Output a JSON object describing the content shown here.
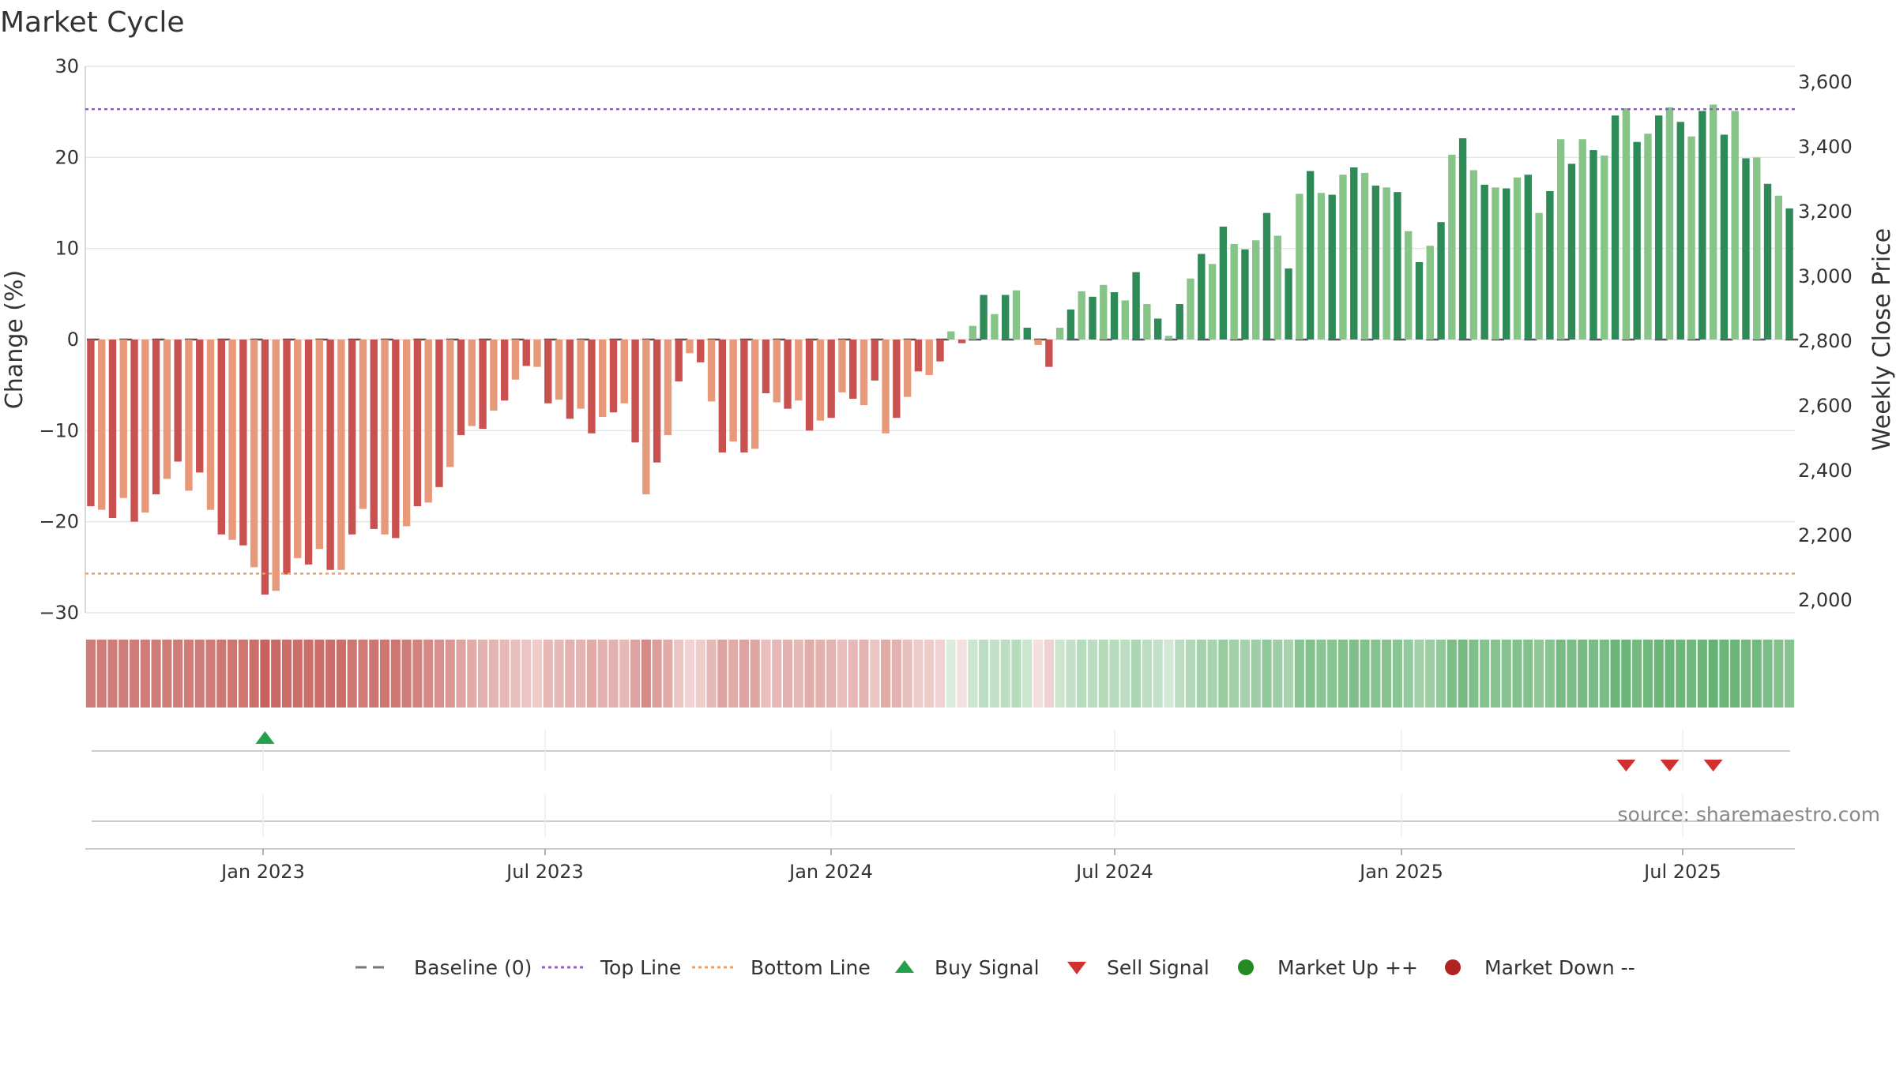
{
  "chart_data": {
    "type": "bar",
    "title": "Market Cycle",
    "y_left": {
      "label": "Change (%)",
      "range": [
        -30,
        30
      ],
      "ticks": [
        -30,
        -20,
        -10,
        0,
        10,
        20,
        30
      ],
      "tick_labels": [
        "−30",
        "−20",
        "−10",
        "0",
        "10",
        "20",
        "30"
      ]
    },
    "y_right": {
      "label": "Weekly Close Price",
      "ticks": [
        "2,000",
        "2,200",
        "2,400",
        "2,600",
        "2,800",
        "3,000",
        "3,200",
        "3,400",
        "3,600"
      ]
    },
    "x_ticks": [
      "Jan 2023",
      "Jul 2023",
      "Jan 2024",
      "Jul 2024",
      "Jan 2025",
      "Jul 2025"
    ],
    "top_line": 25.3,
    "bottom_line": -25.7,
    "source": "source: sharemaestro.com",
    "colors": {
      "down_dark": "#c9514f",
      "down_light": "#e8997a",
      "up_dark": "#2e8b57",
      "up_light": "#86c587",
      "top_line": "#9b59d0",
      "bottom_line": "#f0a060",
      "buy": "#22a04b",
      "sell": "#d03030",
      "market_up": "#228b22",
      "market_down": "#b22222",
      "baseline": "#555555"
    },
    "legend": [
      {
        "label": "Baseline (0)",
        "kind": "dash"
      },
      {
        "label": "Top Line",
        "kind": "dot-purple"
      },
      {
        "label": "Bottom Line",
        "kind": "dot-orange"
      },
      {
        "label": "Buy Signal",
        "kind": "tri-up"
      },
      {
        "label": "Sell Signal",
        "kind": "tri-down"
      },
      {
        "label": "Market Up ++",
        "kind": "circle-green"
      },
      {
        "label": "Market Down --",
        "kind": "circle-red"
      }
    ],
    "values": [
      -18.3,
      -18.7,
      -19.6,
      -17.4,
      -20.0,
      -19.0,
      -17.0,
      -15.3,
      -13.4,
      -16.6,
      -14.6,
      -18.7,
      -21.4,
      -22.0,
      -22.6,
      -25.0,
      -28.0,
      -27.6,
      -25.8,
      -24.0,
      -24.7,
      -23.0,
      -25.3,
      -25.3,
      -21.4,
      -18.6,
      -20.8,
      -21.4,
      -21.8,
      -20.5,
      -18.3,
      -17.9,
      -16.2,
      -14.0,
      -10.5,
      -9.5,
      -9.8,
      -7.8,
      -6.7,
      -4.4,
      -2.9,
      -3.0,
      -7.0,
      -6.6,
      -8.7,
      -7.6,
      -10.3,
      -8.5,
      -8.0,
      -7.0,
      -11.3,
      -17.0,
      -13.5,
      -10.5,
      -4.6,
      -1.5,
      -2.5,
      -6.8,
      -12.4,
      -11.2,
      -12.4,
      -12.0,
      -5.9,
      -6.9,
      -7.6,
      -6.7,
      -10.0,
      -8.9,
      -8.6,
      -5.8,
      -6.5,
      -7.2,
      -4.5,
      -10.3,
      -8.6,
      -6.3,
      -3.5,
      -3.9,
      -2.4,
      0.9,
      -0.4,
      1.5,
      4.9,
      2.8,
      4.9,
      5.4,
      1.3,
      -0.6,
      -3.0,
      1.3,
      3.3,
      5.3,
      4.7,
      6.0,
      5.2,
      4.3,
      7.4,
      3.9,
      2.3,
      0.4,
      3.9,
      6.7,
      9.4,
      8.3,
      12.4,
      10.5,
      9.9,
      10.9,
      13.9,
      11.4,
      7.8,
      16.0,
      18.5,
      16.1,
      15.9,
      18.1,
      18.9,
      18.3,
      16.9,
      16.7,
      16.2,
      11.9,
      8.5,
      10.3,
      12.9,
      20.3,
      22.1,
      18.6,
      17.0,
      16.7,
      16.6,
      17.8,
      18.1,
      13.9,
      16.3,
      22.0,
      19.3,
      22.0,
      20.8,
      20.2,
      24.6,
      25.4,
      21.7,
      22.6,
      24.6,
      25.5,
      23.9,
      22.3,
      25.1,
      25.8,
      22.5,
      25.1,
      19.9,
      20.0,
      17.1,
      15.8,
      14.4
    ],
    "strip_values": [
      -0.8,
      -0.8,
      -0.8,
      -0.8,
      -0.8,
      -0.8,
      -0.8,
      -0.8,
      -0.8,
      -0.8,
      -0.8,
      -0.8,
      -0.85,
      -0.85,
      -0.85,
      -0.9,
      -1.0,
      -0.95,
      -0.9,
      -0.9,
      -0.9,
      -0.9,
      -0.9,
      -0.9,
      -0.85,
      -0.8,
      -0.85,
      -0.85,
      -0.85,
      -0.8,
      -0.75,
      -0.7,
      -0.65,
      -0.6,
      -0.5,
      -0.45,
      -0.4,
      -0.38,
      -0.35,
      -0.3,
      -0.25,
      -0.2,
      -0.35,
      -0.35,
      -0.4,
      -0.38,
      -0.45,
      -0.4,
      -0.4,
      -0.35,
      -0.5,
      -0.7,
      -0.55,
      -0.45,
      -0.25,
      -0.15,
      -0.2,
      -0.35,
      -0.5,
      -0.45,
      -0.5,
      -0.48,
      -0.3,
      -0.35,
      -0.4,
      -0.35,
      -0.45,
      -0.4,
      -0.38,
      -0.3,
      -0.35,
      -0.38,
      -0.25,
      -0.45,
      -0.4,
      -0.3,
      -0.2,
      -0.2,
      -0.15,
      0.05,
      -0.05,
      0.15,
      0.25,
      0.2,
      0.25,
      0.28,
      0.15,
      -0.05,
      -0.15,
      0.15,
      0.2,
      0.28,
      0.25,
      0.3,
      0.28,
      0.25,
      0.35,
      0.25,
      0.2,
      0.1,
      0.25,
      0.32,
      0.4,
      0.38,
      0.48,
      0.42,
      0.4,
      0.45,
      0.52,
      0.45,
      0.38,
      0.58,
      0.62,
      0.58,
      0.58,
      0.62,
      0.64,
      0.62,
      0.6,
      0.6,
      0.58,
      0.5,
      0.42,
      0.46,
      0.52,
      0.66,
      0.7,
      0.64,
      0.6,
      0.6,
      0.6,
      0.62,
      0.62,
      0.54,
      0.58,
      0.7,
      0.66,
      0.7,
      0.68,
      0.68,
      0.76,
      0.78,
      0.72,
      0.74,
      0.76,
      0.78,
      0.76,
      0.74,
      0.78,
      0.8,
      0.76,
      0.78,
      0.72,
      0.72,
      0.66,
      0.62,
      0.6
    ],
    "buy_signals": [
      16
    ],
    "sell_signals": [
      141,
      145,
      149
    ]
  }
}
